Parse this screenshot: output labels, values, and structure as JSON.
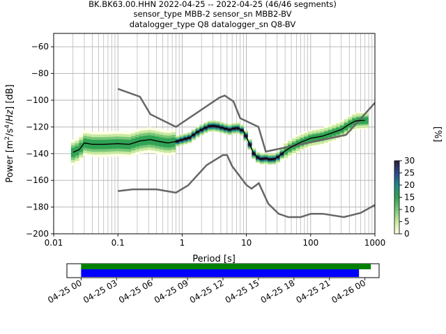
{
  "title_lines": [
    "BK.BK63.00.HHN   2022-04-25 -- 2022-04-25  (46/46 segments)",
    "sensor_type MBB-2 sensor_sn MBB2-BV",
    "datalogger_type Q8 datalogger_sn Q8-BV"
  ],
  "colorbar": {
    "label": "[%]",
    "ticks": [
      "0",
      "5",
      "10",
      "15",
      "20",
      "25",
      "30"
    ],
    "range": [
      0,
      30
    ],
    "colors_low_to_high": [
      "#ffffe5",
      "#c7e9a0",
      "#78c679",
      "#31a354",
      "#1d8a8a",
      "#2a4b8d",
      "#2d1e3e"
    ]
  },
  "chart_data": {
    "type": "heatmap",
    "xlabel": "Period [s]",
    "ylabel": "Power [m^2/s^4/Hz] [dB]",
    "xscale": "log",
    "xlim": [
      0.01,
      1000
    ],
    "ylim": [
      -200,
      -50
    ],
    "x_tick_labels": [
      "0.01",
      "0.1",
      "1",
      "10",
      "100",
      "1000"
    ],
    "y_tick_labels": [
      "−60",
      "−80",
      "−100",
      "−120",
      "−140",
      "−160",
      "−180",
      "−200"
    ],
    "grid": true,
    "noise_model_high": {
      "period": [
        0.1,
        0.22,
        0.32,
        0.8,
        3.8,
        4.6,
        6.3,
        8,
        15.4,
        20,
        354.8,
        10000
      ],
      "power_db": [
        -91.5,
        -97.4,
        -110.5,
        -120,
        -98,
        -96.5,
        -101,
        -113.5,
        -120,
        -138.5,
        -126,
        -48.5
      ]
    },
    "noise_model_low": {
      "period": [
        0.1,
        0.17,
        0.4,
        0.8,
        1.24,
        2.4,
        4.3,
        5,
        6,
        10,
        12,
        15.6,
        21.9,
        31.6,
        45,
        70,
        101,
        154,
        328,
        600,
        10000
      ],
      "power_db": [
        -168,
        -166.7,
        -166.7,
        -169.2,
        -163.7,
        -148.6,
        -141.1,
        -141.1,
        -149.4,
        -163.5,
        -166.2,
        -162.1,
        -177.5,
        -185,
        -187.5,
        -187.5,
        -185,
        -185,
        -187.5,
        -184.4,
        -151.5
      ]
    },
    "mean_curve": {
      "period": [
        0.02,
        0.025,
        0.03,
        0.04,
        0.06,
        0.1,
        0.15,
        0.22,
        0.32,
        0.45,
        0.6,
        0.8,
        1.0,
        1.3,
        1.7,
        2.2,
        2.8,
        3.5,
        4.5,
        5.5,
        7,
        9,
        11,
        13,
        16,
        20,
        25,
        30,
        40,
        50,
        70,
        100,
        150,
        200,
        300,
        400,
        500,
        700
      ],
      "power_db": [
        -139,
        -137,
        -132,
        -133,
        -133,
        -132.5,
        -133,
        -130.5,
        -129.5,
        -131,
        -132,
        -131,
        -129.5,
        -128,
        -124,
        -121,
        -119,
        -119.5,
        -121,
        -122,
        -120.5,
        -123,
        -132,
        -140,
        -144,
        -143.5,
        -144.5,
        -143,
        -138,
        -135,
        -131.5,
        -128.5,
        -127,
        -125,
        -122,
        -118,
        -115.5,
        -115
      ]
    },
    "x_boxes": {
      "period_of_first": 0.02,
      "step_decades": 0.0625,
      "count": 80
    }
  },
  "timeline": {
    "tick_labels": [
      "04-25 00",
      "04-25 03",
      "04-25 06",
      "04-25 09",
      "04-25 12",
      "04-25 15",
      "04-25 18",
      "04-25 21",
      "04-26 00"
    ],
    "tick_hours": [
      0,
      3,
      6,
      9,
      12,
      15,
      18,
      21,
      24
    ],
    "axis_hours": [
      -1.2,
      25.2
    ],
    "data_bar": {
      "start_hour": 0,
      "end_hour": 24.5,
      "color": "#008000"
    },
    "gap_bar": {
      "start_hour": 0,
      "end_hour": 23.5,
      "color": "#0000ff"
    }
  }
}
